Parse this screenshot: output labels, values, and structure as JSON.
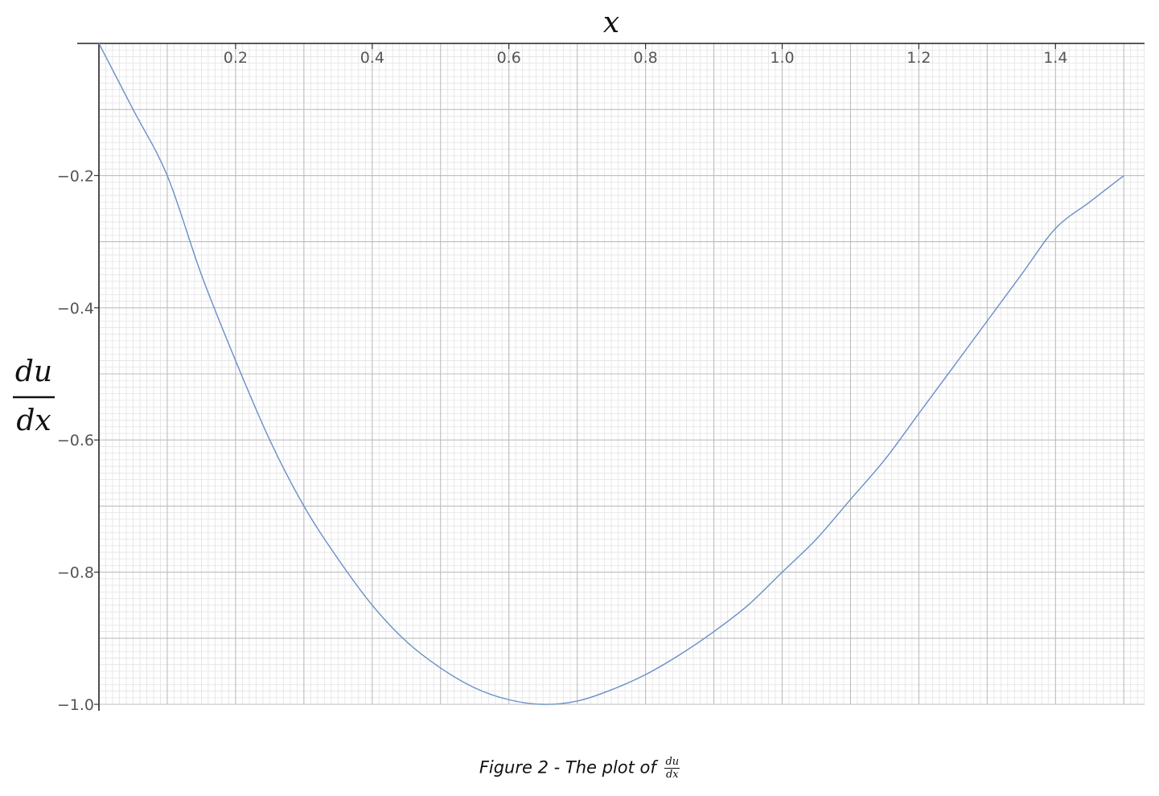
{
  "figure": {
    "caption_text": "Figure 2 - The plot of",
    "caption_frac_num": "du",
    "caption_frac_den": "dx"
  },
  "chart_data": {
    "type": "line",
    "title": "",
    "xlabel": "x",
    "ylabel_num": "du",
    "ylabel_den": "dx",
    "xlim": [
      0,
      1.53
    ],
    "ylim": [
      -1.0,
      0
    ],
    "x_axis_position": "top",
    "x_ticks": [
      0.2,
      0.4,
      0.6,
      0.8,
      1.0,
      1.2,
      1.4
    ],
    "x_tick_labels": [
      "0.2",
      "0.4",
      "0.6",
      "0.8",
      "1.0",
      "1.2",
      "1.4"
    ],
    "y_ticks": [
      -0.2,
      -0.4,
      -0.6,
      -0.8,
      -1.0
    ],
    "y_tick_labels": [
      "−0.2",
      "−0.4",
      "−0.6",
      "−0.8",
      "−1.0"
    ],
    "grid": true,
    "line_color": "#6a8fc7",
    "series": [
      {
        "x": [
          0,
          0.05,
          0.1,
          0.15,
          0.2,
          0.25,
          0.3,
          0.35,
          0.4,
          0.45,
          0.5,
          0.55,
          0.6,
          0.65,
          0.7,
          0.75,
          0.8,
          0.85,
          0.9,
          0.95,
          1.0,
          1.05,
          1.1,
          1.15,
          1.2,
          1.25,
          1.3,
          1.35,
          1.4,
          1.45,
          1.5
        ],
        "y": [
          0,
          -0.1,
          -0.2,
          -0.35,
          -0.48,
          -0.6,
          -0.7,
          -0.78,
          -0.85,
          -0.905,
          -0.945,
          -0.975,
          -0.993,
          -1.0,
          -0.995,
          -0.978,
          -0.955,
          -0.925,
          -0.89,
          -0.85,
          -0.8,
          -0.75,
          -0.69,
          -0.63,
          -0.56,
          -0.49,
          -0.42,
          -0.35,
          -0.28,
          -0.24,
          -0.2
        ]
      }
    ]
  }
}
